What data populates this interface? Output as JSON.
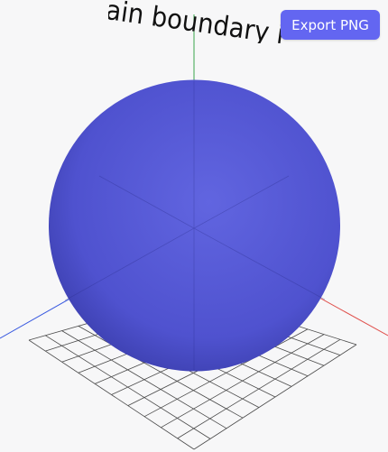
{
  "toolbar": {
    "export_label": "Export PNG",
    "export_color": "#6366f1"
  },
  "scene": {
    "title_text": "ain boundary i  ",
    "sphere_color": "#5457d6",
    "axis_colors": {
      "x": "#e0524e",
      "y": "#3aa64c",
      "z": "#3b5be0"
    },
    "grid_color": "#4a4a4a",
    "background": "#f7f7f8"
  }
}
